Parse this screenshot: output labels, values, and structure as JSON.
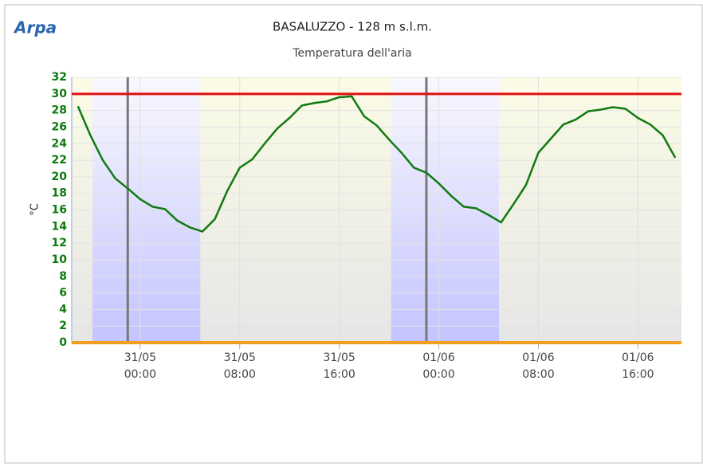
{
  "chart_data": {
    "type": "line",
    "logo": "Arpa",
    "title": "BASALUZZO - 128 m s.l.m.",
    "subtitle": "Temperatura dell'aria",
    "y_label": "°C",
    "x": [
      "30/05 19:00",
      "30/05 20:00",
      "30/05 21:00",
      "30/05 22:00",
      "30/05 23:00",
      "31/05 00:00",
      "31/05 01:00",
      "31/05 02:00",
      "31/05 03:00",
      "31/05 04:00",
      "31/05 05:00",
      "31/05 06:00",
      "31/05 07:00",
      "31/05 08:00",
      "31/05 09:00",
      "31/05 10:00",
      "31/05 11:00",
      "31/05 12:00",
      "31/05 13:00",
      "31/05 14:00",
      "31/05 15:00",
      "31/05 16:00",
      "31/05 17:00",
      "31/05 18:00",
      "31/05 19:00",
      "31/05 20:00",
      "31/05 21:00",
      "31/05 22:00",
      "31/05 23:00",
      "01/06 00:00",
      "01/06 01:00",
      "01/06 02:00",
      "01/06 03:00",
      "01/06 04:00",
      "01/06 05:00",
      "01/06 06:00",
      "01/06 07:00",
      "01/06 08:00",
      "01/06 09:00",
      "01/06 10:00",
      "01/06 11:00",
      "01/06 12:00",
      "01/06 13:00",
      "01/06 14:00",
      "01/06 15:00",
      "01/06 16:00",
      "01/06 17:00",
      "01/06 18:00",
      "01/06 19:00"
    ],
    "series": [
      {
        "color": "#107a10",
        "values": [
          28.5,
          25,
          22,
          19.8,
          18.6,
          17.3,
          16.4,
          16.1,
          14.7,
          13.9,
          13.4,
          14.9,
          18.3,
          21.1,
          22.1,
          24.0,
          25.8,
          27.1,
          28.6,
          28.9,
          29.1,
          29.6,
          29.7,
          27.3,
          26.2,
          24.5,
          22.9,
          21.1,
          20.5,
          19.2,
          17.7,
          16.4,
          16.2,
          15.4,
          14.5,
          16.7,
          19.0,
          22.9,
          24.6,
          26.3,
          26.9,
          27.9,
          28.1,
          28.4,
          28.2,
          27.1,
          26.3,
          25.0,
          22.3
        ]
      }
    ],
    "xlim": [
      "30/05 18:30",
      "01/06 19:30"
    ],
    "xticks": [
      {
        "date": "31/05",
        "time": "00:00"
      },
      {
        "date": "31/05",
        "time": "08:00"
      },
      {
        "date": "31/05",
        "time": "16:00"
      },
      {
        "date": "01/06",
        "time": "00:00"
      },
      {
        "date": "01/06",
        "time": "08:00"
      },
      {
        "date": "01/06",
        "time": "16:00"
      }
    ],
    "ylim": [
      0,
      32
    ],
    "yticks": [
      0,
      2,
      4,
      6,
      8,
      10,
      12,
      14,
      16,
      18,
      20,
      22,
      24,
      26,
      28,
      30,
      32
    ],
    "grid": true,
    "night_bands": [
      [
        "30/05 20:10",
        "31/05 04:50"
      ],
      [
        "31/05 20:10",
        "01/06 04:50"
      ]
    ],
    "vertical_lines": [
      "30/05 23:00",
      "31/05 23:00"
    ],
    "thresholds": [
      {
        "value": 30,
        "color": "#e01010"
      }
    ],
    "x_axis_color": "#f0a020"
  }
}
